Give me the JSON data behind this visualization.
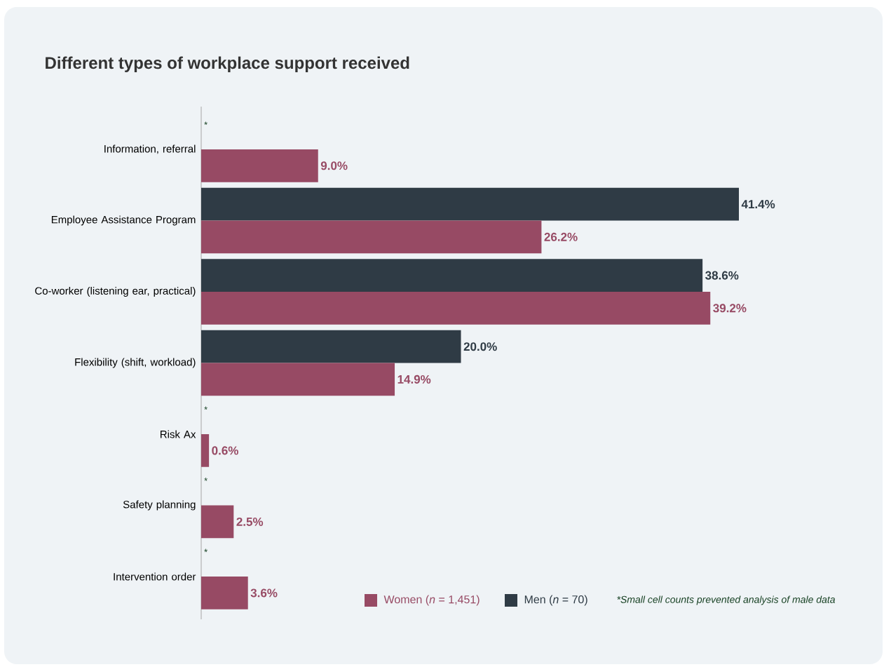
{
  "chart_data": {
    "type": "bar",
    "orientation": "horizontal",
    "title": "Different types of workplace support received",
    "categories": [
      "Information, referral",
      "Employee Assistance Program",
      "Co-worker (listening ear, practical)",
      "Flexibility (shift, workload)",
      "Risk Ax",
      "Safety planning",
      "Intervention order"
    ],
    "series": [
      {
        "name": "Men (*n* = 70)",
        "color": "#2f3b45",
        "values": [
          null,
          41.4,
          38.6,
          20.0,
          null,
          null,
          null
        ],
        "value_labels": [
          null,
          "41.4%",
          "38.6%",
          "20.0%",
          null,
          null,
          null
        ]
      },
      {
        "name": "Women (*n* = 1,451)",
        "color": "#974a64",
        "values": [
          9.0,
          26.2,
          39.2,
          14.9,
          0.6,
          2.5,
          3.6
        ],
        "value_labels": [
          "9.0%",
          "26.2%",
          "39.2%",
          "14.9%",
          "0.6%",
          "2.5%",
          "3.6%"
        ]
      }
    ],
    "tick_labels": "y",
    "legend": "bottom",
    "annotations": [
      {
        "text": "*",
        "y": "Information, referral"
      },
      {
        "text": "*",
        "y": "Risk Ax"
      },
      {
        "text": "*",
        "y": "Safety planning"
      },
      {
        "text": "*",
        "y": "Intervention order"
      },
      "*Small cell counts prevented analysis of male data"
    ]
  }
}
